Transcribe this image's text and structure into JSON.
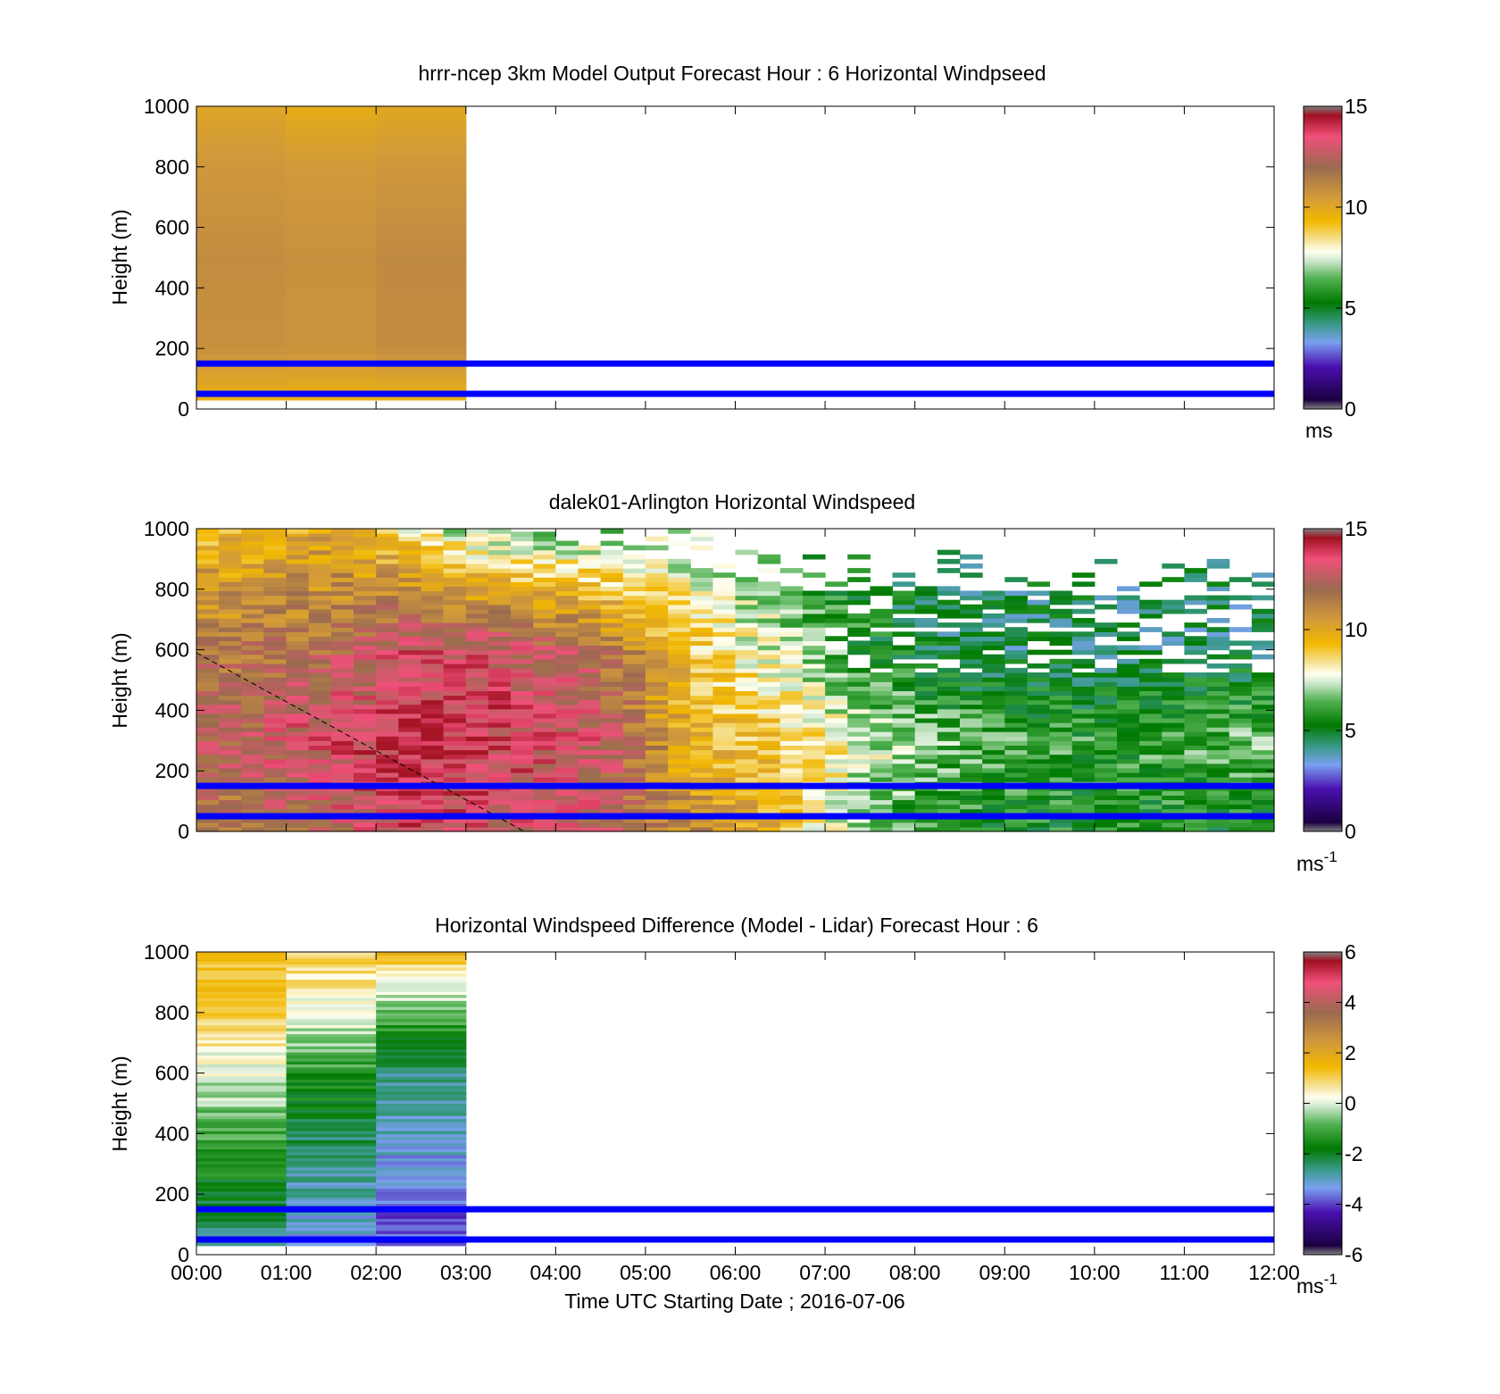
{
  "panels": [
    {
      "id": "model",
      "title": "hrrr-ncep 3km Model Output   Forecast Hour : 6 Horizontal Windpseed",
      "ylabel": "Height (m)",
      "yticks": [
        "0",
        "200",
        "400",
        "600",
        "800",
        "1000"
      ],
      "colorbar": {
        "ticks": [
          "0",
          "5",
          "10",
          "15"
        ],
        "unit": "ms",
        "unit_sup": ""
      }
    },
    {
      "id": "lidar",
      "title": "dalek01-Arlington  Horizontal Windspeed",
      "ylabel": "Height (m)",
      "yticks": [
        "0",
        "200",
        "400",
        "600",
        "800",
        "1000"
      ],
      "colorbar": {
        "ticks": [
          "0",
          "5",
          "10",
          "15"
        ],
        "unit": "ms",
        "unit_sup": "-1"
      }
    },
    {
      "id": "diff",
      "title": "Horizontal Windspeed Difference (Model - Lidar) Forecast Hour : 6",
      "ylabel": "Height (m)",
      "yticks": [
        "0",
        "200",
        "400",
        "600",
        "800",
        "1000"
      ],
      "colorbar": {
        "ticks": [
          "-6",
          "-4",
          "-2",
          "0",
          "2",
          "4",
          "6"
        ],
        "unit": "ms",
        "unit_sup": "-1"
      }
    }
  ],
  "xaxis": {
    "ticks": [
      "00:00",
      "01:00",
      "02:00",
      "03:00",
      "04:00",
      "05:00",
      "06:00",
      "07:00",
      "08:00",
      "09:00",
      "10:00",
      "11:00",
      "12:00"
    ],
    "label": "Time UTC  Starting Date ; 2016-07-06"
  },
  "chart_data": [
    {
      "type": "heatmap",
      "title": "hrrr-ncep 3km Model Output   Forecast Hour : 6 Horizontal Windpseed",
      "xlabel": "",
      "ylabel": "Height (m)",
      "x_range_hours": [
        0,
        12
      ],
      "ylim": [
        0,
        1000
      ],
      "color_range": [
        0,
        15
      ],
      "colorbar_unit": "ms",
      "data_extent_hours": [
        0,
        3
      ],
      "columns": [
        {
          "hour_start": 0,
          "hour_end": 1,
          "profile": [
            {
              "h": 30,
              "v": 9.6
            },
            {
              "h": 200,
              "v": 10.8
            },
            {
              "h": 500,
              "v": 10.9
            },
            {
              "h": 800,
              "v": 10.6
            },
            {
              "h": 1000,
              "v": 10.1
            }
          ]
        },
        {
          "hour_start": 1,
          "hour_end": 2,
          "profile": [
            {
              "h": 30,
              "v": 9.6
            },
            {
              "h": 200,
              "v": 10.7
            },
            {
              "h": 500,
              "v": 10.8
            },
            {
              "h": 800,
              "v": 10.5
            },
            {
              "h": 1000,
              "v": 9.8
            }
          ]
        },
        {
          "hour_start": 2,
          "hour_end": 3,
          "profile": [
            {
              "h": 30,
              "v": 9.6
            },
            {
              "h": 200,
              "v": 10.9
            },
            {
              "h": 500,
              "v": 11.0
            },
            {
              "h": 800,
              "v": 10.6
            },
            {
              "h": 1000,
              "v": 10.0
            }
          ]
        }
      ],
      "reference_lines_m": [
        50,
        150
      ],
      "grid": false
    },
    {
      "type": "heatmap",
      "title": "dalek01-Arlington  Horizontal Windspeed",
      "xlabel": "",
      "ylabel": "Height (m)",
      "x_range_hours": [
        0,
        12
      ],
      "ylim": [
        0,
        1000
      ],
      "color_range": [
        0,
        15
      ],
      "colorbar_unit": "ms-1",
      "profiles": [
        {
          "hour": 0.5,
          "profile": [
            {
              "h": 0,
              "v": 11.5
            },
            {
              "h": 300,
              "v": 12.5
            },
            {
              "h": 600,
              "v": 11.5
            },
            {
              "h": 1000,
              "v": 9.5
            }
          ]
        },
        {
          "hour": 1.5,
          "profile": [
            {
              "h": 0,
              "v": 12.5
            },
            {
              "h": 300,
              "v": 13.5
            },
            {
              "h": 600,
              "v": 12.0
            },
            {
              "h": 1000,
              "v": 10.0
            }
          ]
        },
        {
          "hour": 2.5,
          "profile": [
            {
              "h": 0,
              "v": 13.5
            },
            {
              "h": 300,
              "v": 14.0
            },
            {
              "h": 600,
              "v": 13.5
            },
            {
              "h": 1000,
              "v": 8.0
            }
          ]
        },
        {
          "hour": 3.5,
          "profile": [
            {
              "h": 0,
              "v": 13.0
            },
            {
              "h": 300,
              "v": 13.5
            },
            {
              "h": 600,
              "v": 13.0
            },
            {
              "h": 1000,
              "v": 6.5
            }
          ]
        },
        {
          "hour": 4.5,
          "profile": [
            {
              "h": 0,
              "v": 12.5
            },
            {
              "h": 300,
              "v": 13.0
            },
            {
              "h": 600,
              "v": 12.0
            },
            {
              "h": 1000,
              "v": 6.5
            }
          ]
        },
        {
          "hour": 5.5,
          "profile": [
            {
              "h": 0,
              "v": 11.0
            },
            {
              "h": 300,
              "v": 9.5
            },
            {
              "h": 600,
              "v": 9.0
            },
            {
              "h": 1000,
              "v": 7.0
            }
          ]
        },
        {
          "hour": 6.5,
          "profile": [
            {
              "h": 0,
              "v": 9.5
            },
            {
              "h": 300,
              "v": 9.0
            },
            {
              "h": 600,
              "v": 7.5
            },
            {
              "h": 1000,
              "v": 6.0
            }
          ]
        },
        {
          "hour": 7.5,
          "profile": [
            {
              "h": 0,
              "v": 6.5
            },
            {
              "h": 300,
              "v": 7.5
            },
            {
              "h": 600,
              "v": 5.5
            },
            {
              "h": 1000,
              "v": 5.0
            }
          ]
        },
        {
          "hour": 8.5,
          "profile": [
            {
              "h": 0,
              "v": 5.5
            },
            {
              "h": 300,
              "v": 6.5
            },
            {
              "h": 600,
              "v": 4.5
            },
            {
              "h": 1000,
              "v": 4.5
            }
          ]
        },
        {
          "hour": 9.5,
          "profile": [
            {
              "h": 0,
              "v": 5.5
            },
            {
              "h": 300,
              "v": 6.0
            },
            {
              "h": 600,
              "v": 4.5
            },
            {
              "h": 1000,
              "v": 5.0
            }
          ]
        },
        {
          "hour": 10.5,
          "profile": [
            {
              "h": 0,
              "v": 5.5
            },
            {
              "h": 300,
              "v": 6.0
            },
            {
              "h": 600,
              "v": 4.5
            },
            {
              "h": 1000,
              "v": 4.5
            }
          ]
        },
        {
          "hour": 11.5,
          "profile": [
            {
              "h": 0,
              "v": 5.5
            },
            {
              "h": 300,
              "v": 6.5
            },
            {
              "h": 600,
              "v": 4.5
            },
            {
              "h": 1000,
              "v": 4.5
            }
          ]
        }
      ],
      "reference_lines_m": [
        50,
        150
      ],
      "dashed_line": {
        "from": {
          "hour": 0,
          "h": 590
        },
        "to": {
          "hour": 3.65,
          "h": 0
        }
      },
      "grid": false
    },
    {
      "type": "heatmap",
      "title": "Horizontal Windspeed Difference (Model - Lidar) Forecast Hour : 6",
      "xlabel": "Time UTC  Starting Date ; 2016-07-06",
      "ylabel": "Height (m)",
      "x_range_hours": [
        0,
        12
      ],
      "ylim": [
        0,
        1000
      ],
      "color_range": [
        -6,
        6
      ],
      "colorbar_unit": "ms-1",
      "data_extent_hours": [
        0,
        3
      ],
      "columns": [
        {
          "hour_start": 0,
          "hour_end": 1,
          "profile": [
            {
              "h": 30,
              "v": -2.5
            },
            {
              "h": 200,
              "v": -2.0
            },
            {
              "h": 400,
              "v": -1.0
            },
            {
              "h": 600,
              "v": 0.0
            },
            {
              "h": 800,
              "v": 1.0
            },
            {
              "h": 1000,
              "v": 1.5
            }
          ]
        },
        {
          "hour_start": 1,
          "hour_end": 2,
          "profile": [
            {
              "h": 30,
              "v": -3.3
            },
            {
              "h": 200,
              "v": -3.0
            },
            {
              "h": 400,
              "v": -2.3
            },
            {
              "h": 600,
              "v": -1.3
            },
            {
              "h": 800,
              "v": 0.2
            },
            {
              "h": 1000,
              "v": 1.0
            }
          ]
        },
        {
          "hour_start": 2,
          "hour_end": 3,
          "profile": [
            {
              "h": 30,
              "v": -4.0
            },
            {
              "h": 200,
              "v": -3.6
            },
            {
              "h": 400,
              "v": -3.0
            },
            {
              "h": 600,
              "v": -2.6
            },
            {
              "h": 800,
              "v": -0.8
            },
            {
              "h": 1000,
              "v": 1.5
            }
          ]
        }
      ],
      "reference_lines_m": [
        50,
        150
      ],
      "grid": false
    }
  ],
  "colors": {
    "reference_line": "#0000ff",
    "dashed_line": "#000000",
    "colormap": [
      "#808080",
      "#1a0040",
      "#4a10b0",
      "#7aa0f0",
      "#3a9a8a",
      "#007a00",
      "#50b050",
      "#d8ecd8",
      "#fffce0",
      "#f2b800",
      "#d7a040",
      "#9a6a50",
      "#e04a70",
      "#a01020",
      "#808080"
    ]
  }
}
